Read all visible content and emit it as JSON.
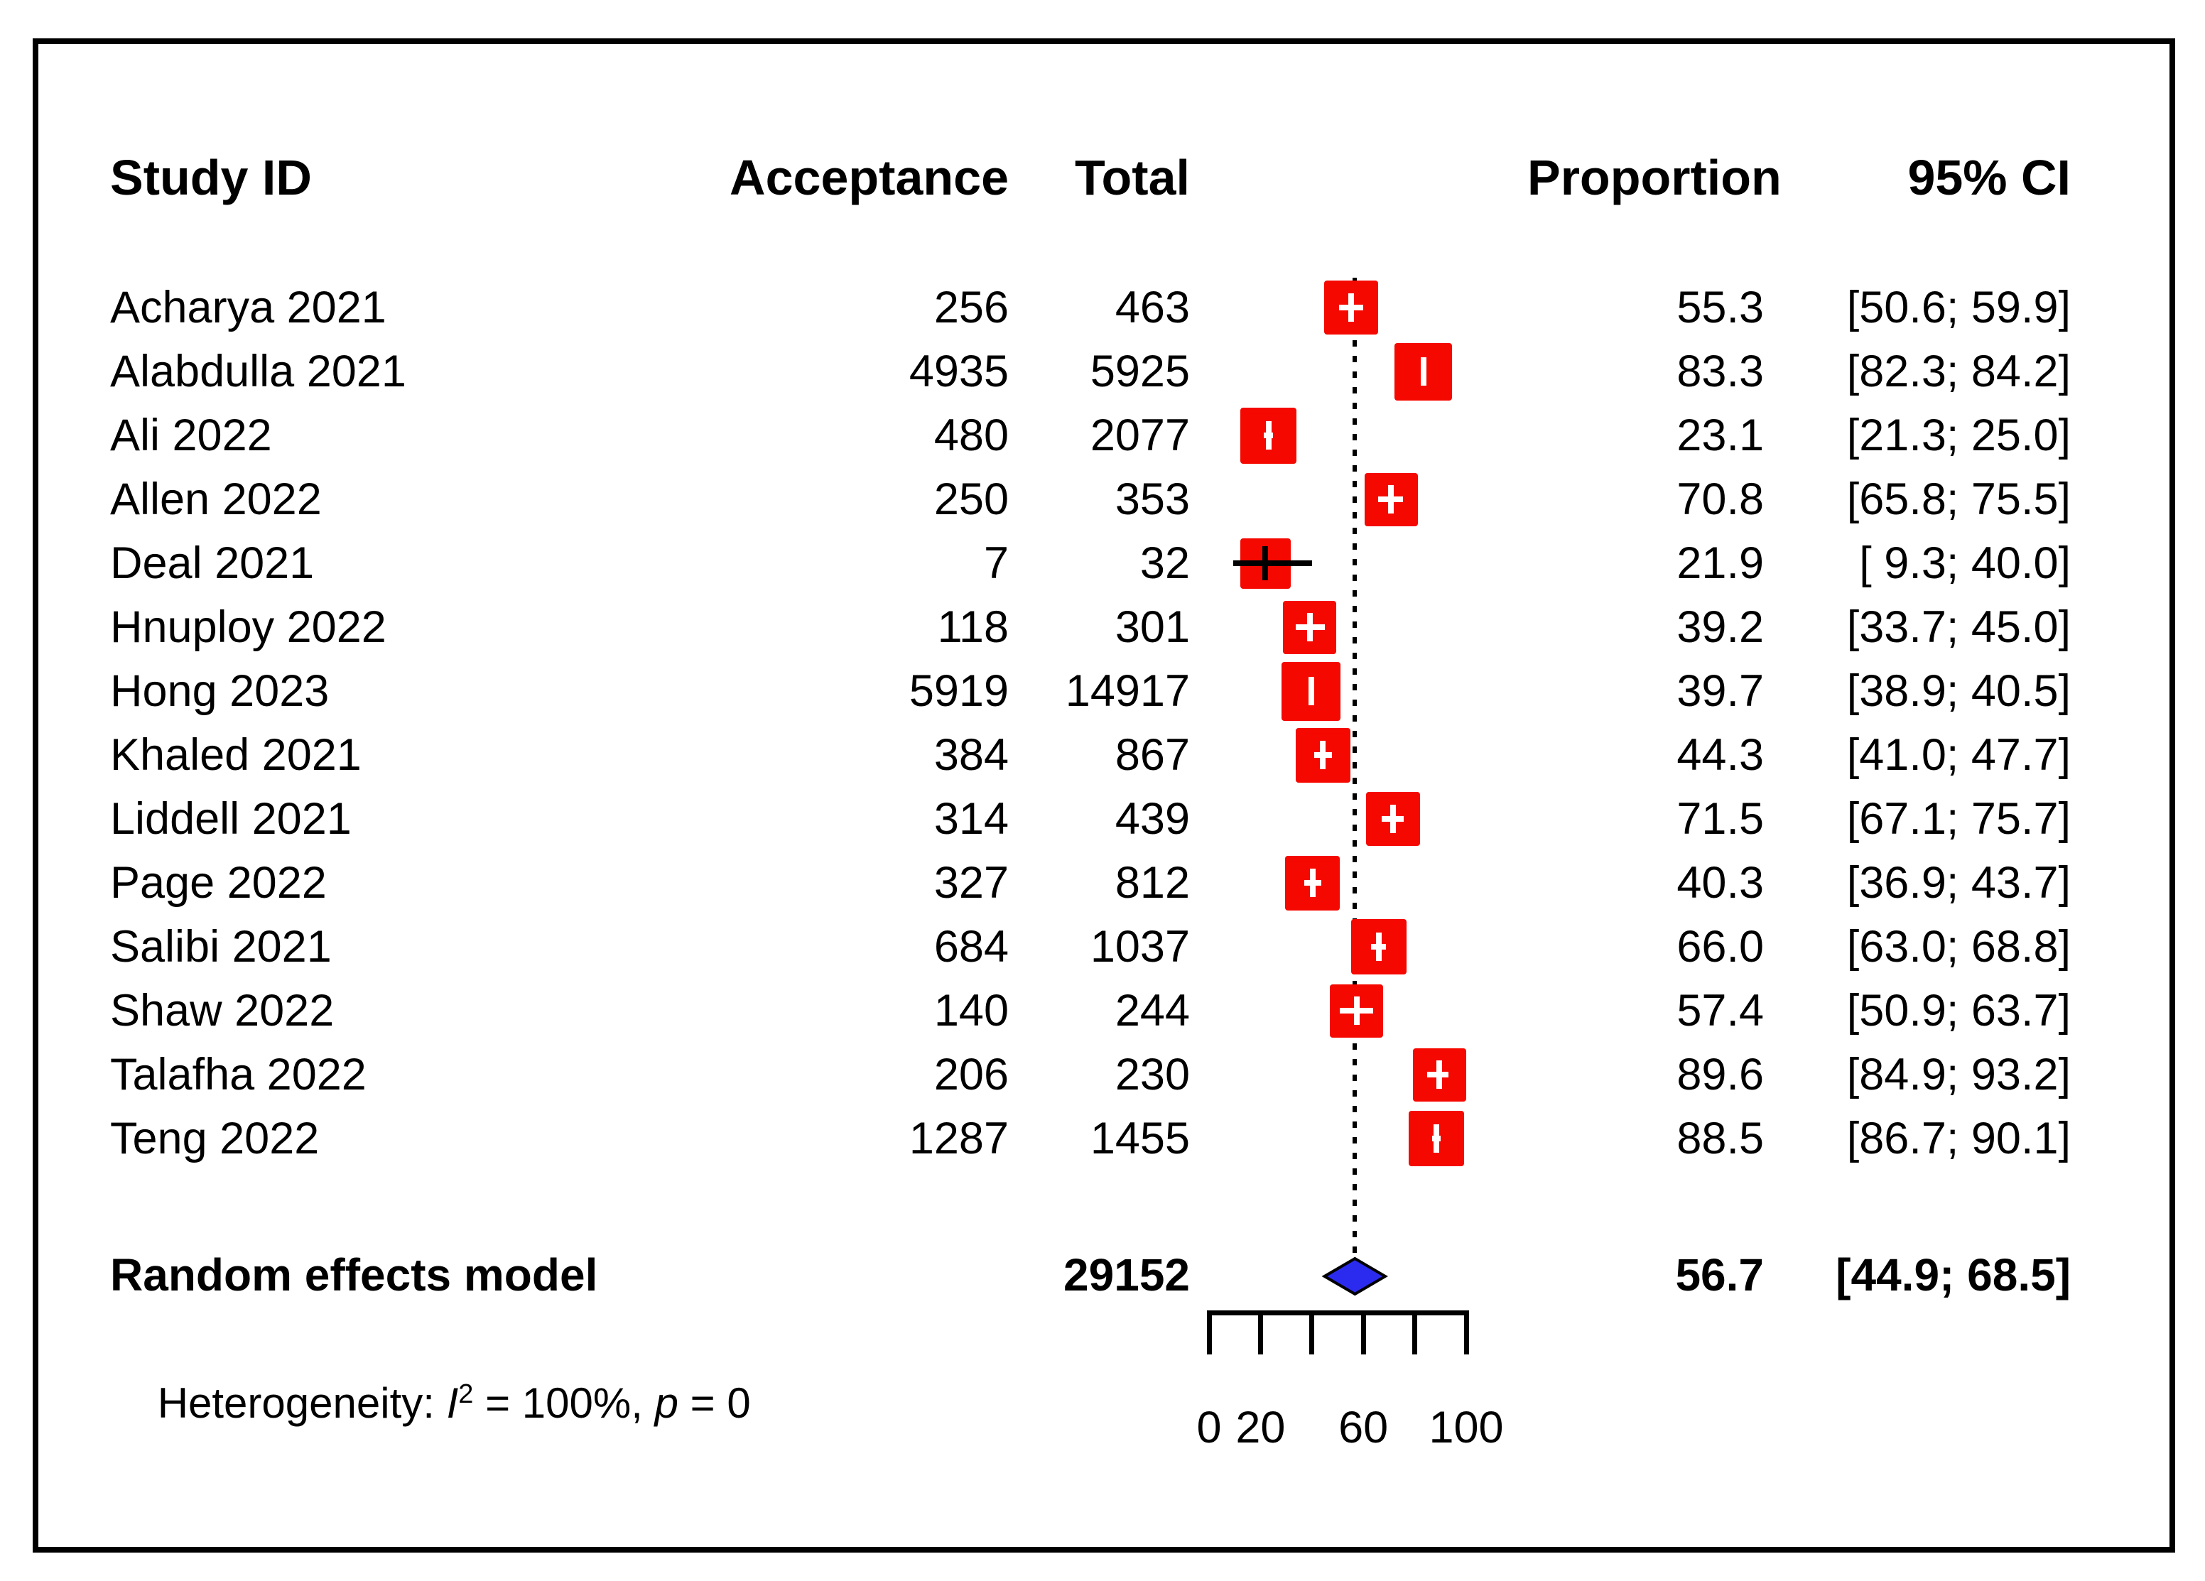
{
  "chart_data": {
    "type": "scatter",
    "variant": "forest-plot-meta-analysis",
    "columns": [
      "Study ID",
      "Acceptance",
      "Total",
      "Proportion",
      "95% CI"
    ],
    "x_axis": {
      "min": 0,
      "max": 100,
      "ticks": [
        0,
        20,
        40,
        60,
        80,
        100
      ],
      "tick_labels": [
        {
          "text": "0",
          "value": 0
        },
        {
          "text": "20",
          "value": 20
        },
        {
          "text": "60",
          "value": 60
        },
        {
          "text": "100",
          "value": 100
        }
      ]
    },
    "reference_line_x": 56.7,
    "studies": [
      {
        "id": "Acharya 2021",
        "acceptance": 256,
        "total": 463,
        "proportion": 55.3,
        "proportion_text": "55.3",
        "ci_low": 50.6,
        "ci_high": 59.9,
        "ci_text": "[50.6; 59.9]"
      },
      {
        "id": "Alabdulla 2021",
        "acceptance": 4935,
        "total": 5925,
        "proportion": 83.3,
        "proportion_text": "83.3",
        "ci_low": 82.3,
        "ci_high": 84.2,
        "ci_text": "[82.3; 84.2]"
      },
      {
        "id": "Ali 2022",
        "acceptance": 480,
        "total": 2077,
        "proportion": 23.1,
        "proportion_text": "23.1",
        "ci_low": 21.3,
        "ci_high": 25.0,
        "ci_text": "[21.3; 25.0]"
      },
      {
        "id": "Allen 2022",
        "acceptance": 250,
        "total": 353,
        "proportion": 70.8,
        "proportion_text": "70.8",
        "ci_low": 65.8,
        "ci_high": 75.5,
        "ci_text": "[65.8; 75.5]"
      },
      {
        "id": "Deal 2021",
        "acceptance": 7,
        "total": 32,
        "proportion": 21.9,
        "proportion_text": "21.9",
        "ci_low": 9.3,
        "ci_high": 40.0,
        "ci_text": "[ 9.3; 40.0]"
      },
      {
        "id": "Hnuploy 2022",
        "acceptance": 118,
        "total": 301,
        "proportion": 39.2,
        "proportion_text": "39.2",
        "ci_low": 33.7,
        "ci_high": 45.0,
        "ci_text": "[33.7; 45.0]"
      },
      {
        "id": "Hong 2023",
        "acceptance": 5919,
        "total": 14917,
        "proportion": 39.7,
        "proportion_text": "39.7",
        "ci_low": 38.9,
        "ci_high": 40.5,
        "ci_text": "[38.9; 40.5]"
      },
      {
        "id": "Khaled 2021",
        "acceptance": 384,
        "total": 867,
        "proportion": 44.3,
        "proportion_text": "44.3",
        "ci_low": 41.0,
        "ci_high": 47.7,
        "ci_text": "[41.0; 47.7]"
      },
      {
        "id": "Liddell 2021",
        "acceptance": 314,
        "total": 439,
        "proportion": 71.5,
        "proportion_text": "71.5",
        "ci_low": 67.1,
        "ci_high": 75.7,
        "ci_text": "[67.1; 75.7]"
      },
      {
        "id": "Page 2022",
        "acceptance": 327,
        "total": 812,
        "proportion": 40.3,
        "proportion_text": "40.3",
        "ci_low": 36.9,
        "ci_high": 43.7,
        "ci_text": "[36.9; 43.7]"
      },
      {
        "id": "Salibi 2021",
        "acceptance": 684,
        "total": 1037,
        "proportion": 66.0,
        "proportion_text": "66.0",
        "ci_low": 63.0,
        "ci_high": 68.8,
        "ci_text": "[63.0; 68.8]"
      },
      {
        "id": "Shaw 2022",
        "acceptance": 140,
        "total": 244,
        "proportion": 57.4,
        "proportion_text": "57.4",
        "ci_low": 50.9,
        "ci_high": 63.7,
        "ci_text": "[50.9; 63.7]"
      },
      {
        "id": "Talafha 2022",
        "acceptance": 206,
        "total": 230,
        "proportion": 89.6,
        "proportion_text": "89.6",
        "ci_low": 84.9,
        "ci_high": 93.2,
        "ci_text": "[84.9; 93.2]"
      },
      {
        "id": "Teng 2022",
        "acceptance": 1287,
        "total": 1455,
        "proportion": 88.5,
        "proportion_text": "88.5",
        "ci_low": 86.7,
        "ci_high": 90.1,
        "ci_text": "[86.7; 90.1]"
      }
    ],
    "pooled": {
      "label": "Random effects model",
      "total": 29152,
      "proportion": 56.7,
      "proportion_text": "56.7",
      "ci_low": 44.9,
      "ci_high": 68.5,
      "ci_text": "[44.9; 68.5]"
    },
    "marker_color": "#f50800",
    "diamond_color": "#2b2bf0",
    "line_color": "#000000",
    "grid": false,
    "legend": false,
    "title": "",
    "xlabel": "",
    "ylabel": ""
  },
  "heterogeneity": {
    "prefix": "Heterogeneity: ",
    "i": "I",
    "sup": "2",
    "mid": " = 100%, ",
    "p": "p",
    "suffix": " = 0"
  }
}
